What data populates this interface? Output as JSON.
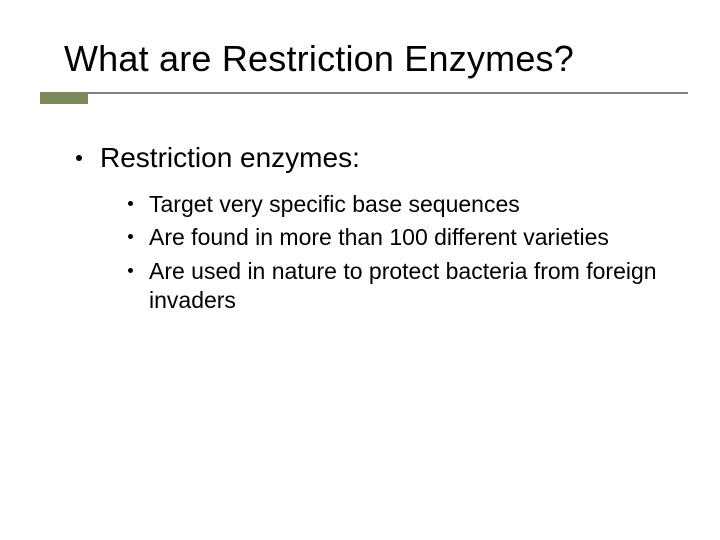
{
  "slide": {
    "title": "What are Restriction Enzymes?",
    "title_fontsize": 36,
    "title_color": "#000000",
    "underline_color": "#808080",
    "tab_color": "#7a8a5a",
    "background_color": "#ffffff",
    "level1": {
      "text": "Restriction enzymes:",
      "fontsize": 28,
      "bullet_color": "#000000"
    },
    "level2": {
      "fontsize": 23,
      "bullet_color": "#000000",
      "items": [
        "Target very specific base sequences",
        "Are found in more than 100 different varieties",
        "Are used in nature to protect bacteria from foreign invaders"
      ]
    }
  }
}
